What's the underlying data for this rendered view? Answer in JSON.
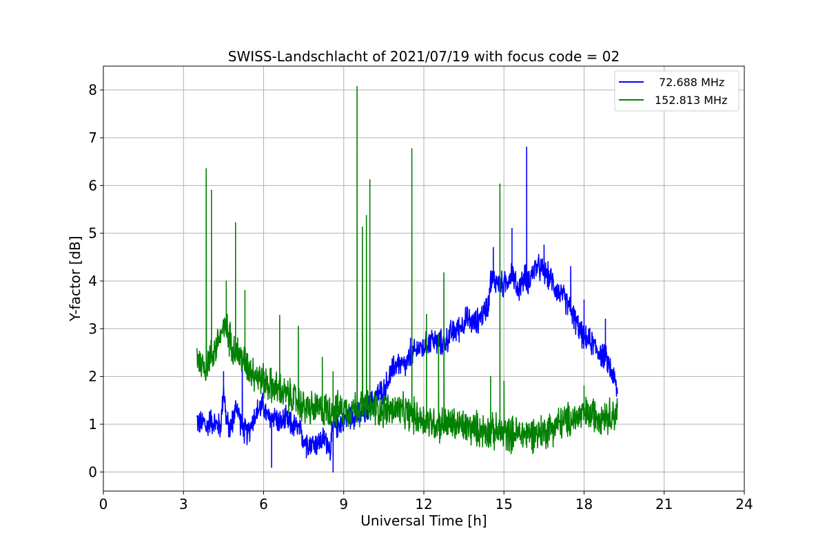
{
  "chart_data": {
    "type": "line",
    "title": "SWISS-Landschlacht of 2021/07/19 with focus code = 02",
    "xlabel": "Universal Time [h]",
    "ylabel": "Y-factor [dB]",
    "xlim": [
      0,
      24
    ],
    "ylim": [
      -0.4,
      8.5
    ],
    "xticks": [
      0,
      3,
      6,
      9,
      12,
      15,
      18,
      21,
      24
    ],
    "yticks": [
      0,
      1,
      2,
      3,
      4,
      5,
      6,
      7,
      8
    ],
    "grid": true,
    "legend_position": "top-right",
    "series": [
      {
        "name": "72.688 MHz",
        "color": "#0000ff",
        "x": [
          3.5,
          3.6,
          3.8,
          3.85,
          4.0,
          4.2,
          4.4,
          4.5,
          4.6,
          4.7,
          4.8,
          5.0,
          5.2,
          5.4,
          5.6,
          5.8,
          6.0,
          6.1,
          6.2,
          6.4,
          6.6,
          6.8,
          7.0,
          7.3,
          7.5,
          7.8,
          8.0,
          8.3,
          8.5,
          8.6,
          8.8,
          9.0,
          9.3,
          9.6,
          9.9,
          10.0,
          10.2,
          10.5,
          10.8,
          11.0,
          11.3,
          11.5,
          11.8,
          12.0,
          12.3,
          12.5,
          12.8,
          13.0,
          13.3,
          13.6,
          13.9,
          14.2,
          14.4,
          14.5,
          14.7,
          15.0,
          15.3,
          15.5,
          15.8,
          15.9,
          16.2,
          16.5,
          16.8,
          17.0,
          17.3,
          17.5,
          17.8,
          18.0,
          18.3,
          18.6,
          18.9,
          19.1,
          19.2,
          19.25
        ],
        "y": [
          1.1,
          1.0,
          1.05,
          0.9,
          1.1,
          1.0,
          0.95,
          1.8,
          1.1,
          0.9,
          1.0,
          1.4,
          0.9,
          0.8,
          1.1,
          1.3,
          1.4,
          1.2,
          1.1,
          1.2,
          1.0,
          1.1,
          1.0,
          0.9,
          0.7,
          0.6,
          0.6,
          0.7,
          0.5,
          0.9,
          1.0,
          1.1,
          1.2,
          1.15,
          1.3,
          1.4,
          1.6,
          1.7,
          2.1,
          2.3,
          2.2,
          2.4,
          2.6,
          2.6,
          2.8,
          2.7,
          2.7,
          2.9,
          3.0,
          3.2,
          3.1,
          3.3,
          3.5,
          4.0,
          4.0,
          3.9,
          4.2,
          3.8,
          4.1,
          4.0,
          4.3,
          4.2,
          4.0,
          3.8,
          3.6,
          3.4,
          3.0,
          2.8,
          2.7,
          2.5,
          2.3,
          2.0,
          1.8,
          1.6
        ],
        "spikes": [
          [
            4.5,
            2.1
          ],
          [
            5.2,
            2.3
          ],
          [
            6.3,
            0.1
          ],
          [
            7.6,
            0.3
          ],
          [
            8.6,
            0.0
          ],
          [
            11.5,
            2.8
          ],
          [
            14.6,
            4.7
          ],
          [
            15.3,
            5.1
          ],
          [
            15.85,
            6.8
          ],
          [
            16.5,
            4.75
          ],
          [
            17.5,
            4.3
          ],
          [
            18.0,
            3.6
          ],
          [
            18.8,
            3.2
          ]
        ]
      },
      {
        "name": "152.813 MHz",
        "color": "#008000",
        "x": [
          3.5,
          3.6,
          3.8,
          4.0,
          4.2,
          4.4,
          4.6,
          4.8,
          5.0,
          5.3,
          5.6,
          6.0,
          6.3,
          6.6,
          6.9,
          7.2,
          7.5,
          8.0,
          8.5,
          9.0,
          9.5,
          10.0,
          10.5,
          11.0,
          11.5,
          12.0,
          12.5,
          13.0,
          13.5,
          14.0,
          14.5,
          15.0,
          15.5,
          16.0,
          16.5,
          17.0,
          17.5,
          18.0,
          18.5,
          19.0,
          19.25
        ],
        "y": [
          2.5,
          2.3,
          2.2,
          2.4,
          2.6,
          2.9,
          3.0,
          2.7,
          2.5,
          2.3,
          2.1,
          1.9,
          1.8,
          1.7,
          1.6,
          1.5,
          1.35,
          1.3,
          1.3,
          1.3,
          1.35,
          1.35,
          1.3,
          1.3,
          1.2,
          1.1,
          1.0,
          1.0,
          0.95,
          0.9,
          0.85,
          0.8,
          0.8,
          0.8,
          0.85,
          1.0,
          1.1,
          1.2,
          1.2,
          1.2,
          1.25
        ],
        "spikes": [
          [
            3.85,
            6.35
          ],
          [
            4.05,
            5.9
          ],
          [
            4.6,
            4.0
          ],
          [
            4.95,
            5.22
          ],
          [
            5.3,
            3.8
          ],
          [
            6.6,
            3.28
          ],
          [
            7.3,
            3.05
          ],
          [
            8.2,
            2.4
          ],
          [
            8.6,
            2.1
          ],
          [
            9.5,
            8.07
          ],
          [
            9.7,
            5.13
          ],
          [
            9.85,
            5.37
          ],
          [
            9.98,
            6.12
          ],
          [
            11.55,
            6.77
          ],
          [
            12.1,
            3.3
          ],
          [
            12.55,
            2.9
          ],
          [
            12.75,
            4.17
          ],
          [
            14.5,
            2.0
          ],
          [
            14.85,
            6.03
          ],
          [
            15.0,
            1.9
          ],
          [
            18.0,
            1.8
          ]
        ]
      }
    ]
  }
}
